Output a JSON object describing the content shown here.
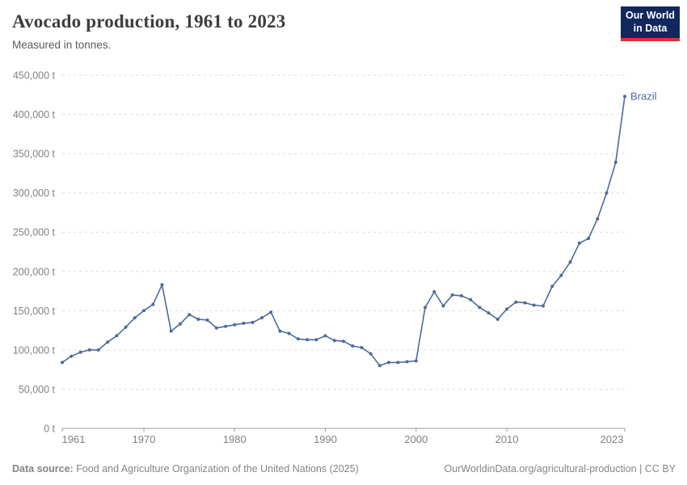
{
  "header": {
    "title": "Avocado production, 1961 to 2023",
    "subtitle": "Measured in tonnes."
  },
  "logo": {
    "line1": "Our World",
    "line2": "in Data",
    "bg": "#12275C",
    "accent": "#E0302F"
  },
  "chart_data": {
    "type": "line",
    "title": "Avocado production, 1961 to 2023",
    "unit": "tonnes",
    "x": [
      1961,
      1962,
      1963,
      1964,
      1965,
      1966,
      1967,
      1968,
      1969,
      1970,
      1971,
      1972,
      1973,
      1974,
      1975,
      1976,
      1977,
      1978,
      1979,
      1980,
      1981,
      1982,
      1983,
      1984,
      1985,
      1986,
      1987,
      1988,
      1989,
      1990,
      1991,
      1992,
      1993,
      1994,
      1995,
      1996,
      1997,
      1998,
      1999,
      2000,
      2001,
      2002,
      2003,
      2004,
      2005,
      2006,
      2007,
      2008,
      2009,
      2010,
      2011,
      2012,
      2013,
      2014,
      2015,
      2016,
      2017,
      2018,
      2019,
      2020,
      2021,
      2022,
      2023
    ],
    "series": [
      {
        "name": "Brazil",
        "color": "#4C6A9C",
        "values": [
          84000,
          92000,
          97000,
          100000,
          100000,
          110000,
          118000,
          129000,
          141000,
          150000,
          158000,
          183000,
          124000,
          133000,
          145000,
          139000,
          138000,
          128000,
          130000,
          132000,
          134000,
          135000,
          141000,
          148000,
          124000,
          121000,
          114000,
          113000,
          113000,
          118000,
          112000,
          111000,
          105000,
          103000,
          95000,
          80000,
          84000,
          84000,
          85000,
          86000,
          154000,
          174000,
          156000,
          170000,
          169000,
          164000,
          154000,
          147000,
          139000,
          152000,
          161000,
          160000,
          157000,
          156000,
          181000,
          195000,
          212000,
          236000,
          242000,
          267000,
          300000,
          339000,
          423000
        ]
      }
    ],
    "xlabel": "",
    "ylabel": "",
    "ylim": [
      0,
      450000
    ],
    "grid": "horizontal-dashed",
    "legend_position": "end-of-line",
    "end_label": "Brazil",
    "y_ticks": {
      "values": [
        0,
        50000,
        100000,
        150000,
        200000,
        250000,
        300000,
        350000,
        400000,
        450000
      ],
      "labels": [
        "0 t",
        "50,000 t",
        "100,000 t",
        "150,000 t",
        "200,000 t",
        "250,000 t",
        "300,000 t",
        "350,000 t",
        "400,000 t",
        "450,000 t"
      ]
    },
    "x_ticks": [
      1961,
      1970,
      1980,
      1990,
      2000,
      2010,
      2023
    ]
  },
  "footer": {
    "source_label": "Data source:",
    "source_text": "Food and Agriculture Organization of the United Nations (2025)",
    "link_text": "OurWorldinData.org/agricultural-production | CC BY"
  },
  "colors": {
    "line": "#4C6A9C",
    "grid": "#DCDCDC",
    "axis": "#9A9A9A",
    "tick_label": "#818181",
    "title": "#3D3D3D",
    "subtitle": "#5B5B5B",
    "footer": "#858585"
  }
}
